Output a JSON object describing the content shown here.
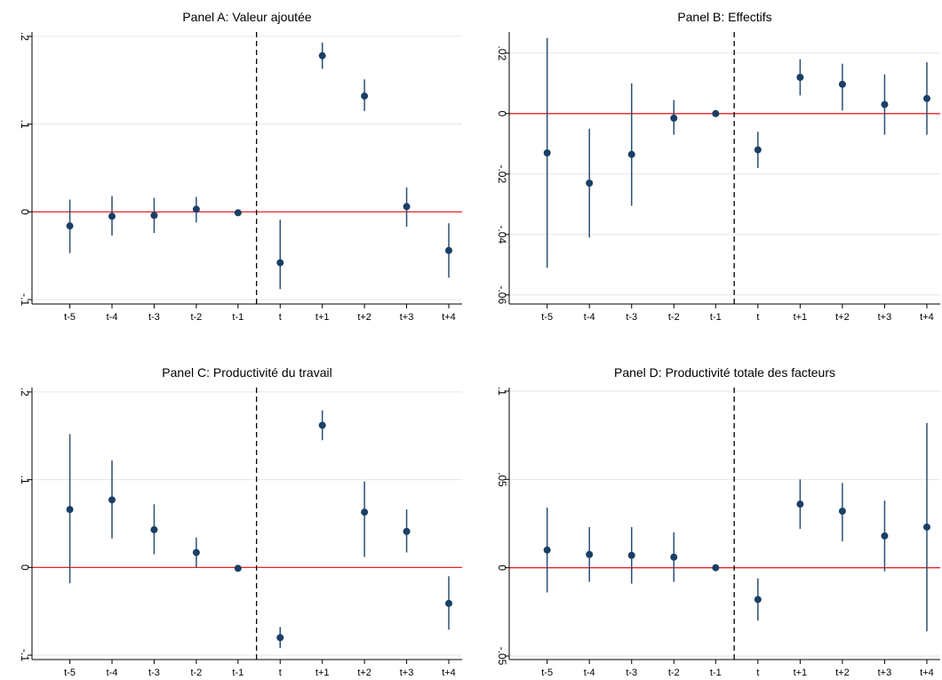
{
  "chart_data": [
    {
      "type": "scatter",
      "title": "Panel A: Valeur ajoutée",
      "categories": [
        "t-5",
        "t-4",
        "t-3",
        "t-2",
        "t-1",
        "t",
        "t+1",
        "t+2",
        "t+3",
        "t+4"
      ],
      "yticks": [
        ".2",
        ".1",
        "0",
        "-.1"
      ],
      "ylim": [
        -0.105,
        0.205
      ],
      "values": [
        -0.016,
        -0.005,
        -0.004,
        0.003,
        -0.001,
        -0.058,
        0.178,
        0.132,
        0.006,
        -0.044
      ],
      "ci_low": [
        -0.047,
        -0.027,
        -0.024,
        -0.012,
        -0.003,
        -0.088,
        0.163,
        0.115,
        -0.017,
        -0.075
      ],
      "ci_high": [
        0.014,
        0.018,
        0.016,
        0.017,
        0.001,
        -0.009,
        0.193,
        0.151,
        0.028,
        -0.013
      ],
      "reference_line": 0,
      "event_line_between": [
        "t-1",
        "t"
      ],
      "grid": true
    },
    {
      "type": "scatter",
      "title": "Panel B: Effectifs",
      "categories": [
        "t-5",
        "t-4",
        "t-3",
        "t-2",
        "t-1",
        "t",
        "t+1",
        "t+2",
        "t+3",
        "t+4"
      ],
      "yticks": [
        ".02",
        "0",
        "-.02",
        "-.04",
        "-.06"
      ],
      "ylim": [
        -0.063,
        0.027
      ],
      "values": [
        -0.013,
        -0.023,
        -0.0135,
        -0.0015,
        0.0,
        -0.012,
        0.012,
        0.0097,
        0.003,
        0.005
      ],
      "ci_low": [
        -0.051,
        -0.041,
        -0.0305,
        -0.007,
        -0.0005,
        -0.018,
        0.006,
        0.001,
        -0.007,
        -0.007
      ],
      "ci_high": [
        0.025,
        -0.005,
        0.01,
        0.0045,
        0.0005,
        -0.006,
        0.018,
        0.0165,
        0.013,
        0.017
      ],
      "reference_line": 0,
      "event_line_between": [
        "t-1",
        "t"
      ],
      "grid": true
    },
    {
      "type": "scatter",
      "title": "Panel C: Productivité du travail",
      "categories": [
        "t-5",
        "t-4",
        "t-3",
        "t-2",
        "t-1",
        "t",
        "t+1",
        "t+2",
        "t+3",
        "t+4"
      ],
      "yticks": [
        ".2",
        ".1",
        "0",
        "-.1"
      ],
      "ylim": [
        -0.105,
        0.205
      ],
      "values": [
        0.066,
        0.077,
        0.043,
        0.017,
        -0.001,
        -0.08,
        0.162,
        0.063,
        0.041,
        -0.041
      ],
      "ci_low": [
        -0.018,
        0.033,
        0.015,
        0.0,
        -0.003,
        -0.092,
        0.145,
        0.012,
        0.017,
        -0.071
      ],
      "ci_high": [
        0.152,
        0.122,
        0.072,
        0.034,
        0.001,
        -0.068,
        0.179,
        0.098,
        0.066,
        -0.01
      ],
      "reference_line": 0,
      "event_line_between": [
        "t-1",
        "t"
      ],
      "grid": true
    },
    {
      "type": "scatter",
      "title": "Panel D: Productivité totale des facteurs",
      "categories": [
        "t-5",
        "t-4",
        "t-3",
        "t-2",
        "t-1",
        "t",
        "t+1",
        "t+2",
        "t+3",
        "t+4"
      ],
      "yticks": [
        ".1",
        ".05",
        "0",
        "-.05"
      ],
      "ylim": [
        -0.052,
        0.102
      ],
      "values": [
        0.01,
        0.0075,
        0.007,
        0.006,
        0.0,
        -0.018,
        0.036,
        0.032,
        0.018,
        0.023
      ],
      "ci_low": [
        -0.014,
        -0.008,
        -0.009,
        -0.008,
        -0.001,
        -0.03,
        0.022,
        0.015,
        -0.002,
        -0.036
      ],
      "ci_high": [
        0.034,
        0.023,
        0.023,
        0.02,
        0.001,
        -0.006,
        0.05,
        0.048,
        0.038,
        0.082
      ],
      "reference_line": 0,
      "event_line_between": [
        "t-1",
        "t"
      ],
      "grid": true
    }
  ],
  "colors": {
    "marker": "#1a3f66",
    "errorbar": "#2c4f73",
    "zero_line": "#e8242a",
    "event_line": "#000000",
    "grid": "#e6e6e6",
    "axis": "#000000"
  }
}
